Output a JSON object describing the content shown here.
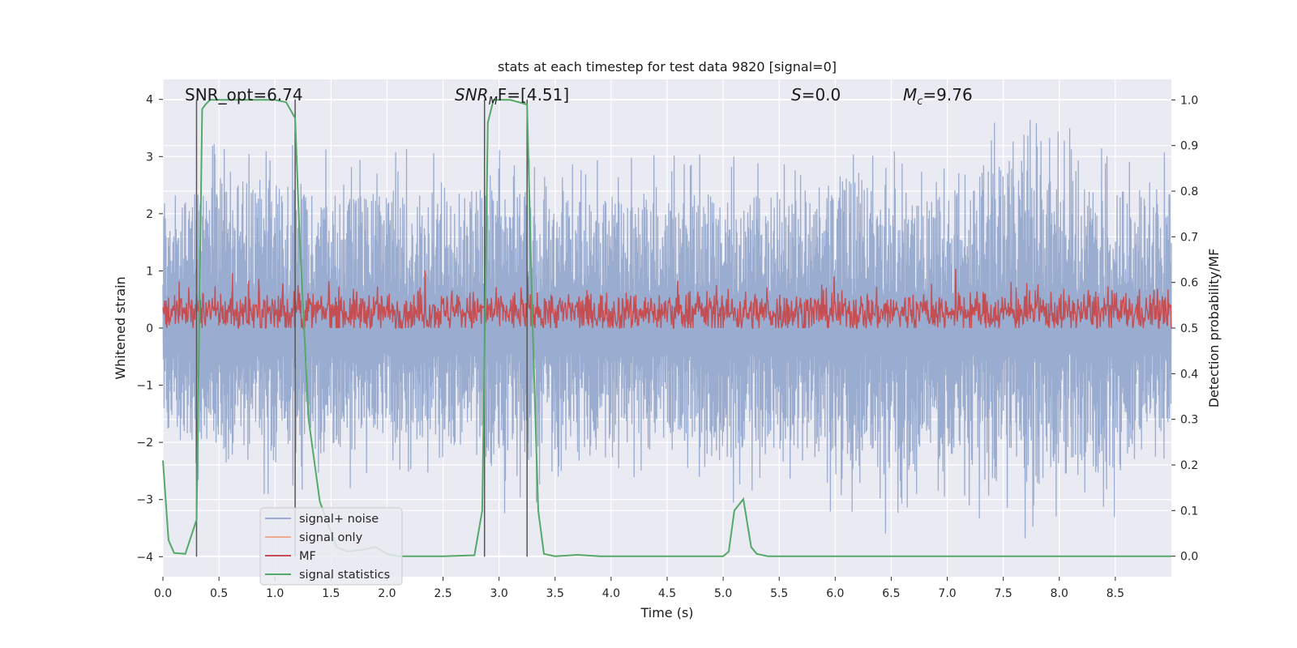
{
  "chart_data": {
    "type": "line",
    "title": "stats at each timestep for test data 9820 [signal=0]",
    "xlabel": "Time (s)",
    "ylabel": "Whitened strain",
    "ylabel_right": "Detection probability/MF",
    "xlim": [
      0,
      9.0
    ],
    "ylim": [
      -4.35,
      4.35
    ],
    "ylim_right": [
      -0.045,
      1.045
    ],
    "x_ticks": [
      0.0,
      0.5,
      1.0,
      1.5,
      2.0,
      2.5,
      3.0,
      3.5,
      4.0,
      4.5,
      5.0,
      5.5,
      6.0,
      6.5,
      7.0,
      7.5,
      8.0,
      8.5
    ],
    "x_tick_labels": [
      "0.0",
      "0.5",
      "1.0",
      "1.5",
      "2.0",
      "2.5",
      "3.0",
      "3.5",
      "4.0",
      "4.5",
      "5.0",
      "5.5",
      "6.0",
      "6.5",
      "7.0",
      "7.5",
      "8.0",
      "8.5"
    ],
    "y_ticks": [
      4,
      3,
      2,
      1,
      0,
      -1,
      -2,
      -3,
      -4
    ],
    "y_tick_labels": [
      "4",
      "3",
      "2",
      "1",
      "0",
      "−1",
      "−2",
      "−3",
      "−4"
    ],
    "y2_ticks": [
      1.0,
      0.9,
      0.8,
      0.7,
      0.6,
      0.5,
      0.4,
      0.3,
      0.2,
      0.1,
      0.0
    ],
    "y2_tick_labels": [
      "1.0",
      "0.9",
      "0.8",
      "0.7",
      "0.6",
      "0.5",
      "0.4",
      "0.3",
      "0.2",
      "0.1",
      "0.0"
    ],
    "grid": true,
    "annotations": {
      "snr_opt": "SNR_opt=6.74",
      "snr_mf_label": "SNR",
      "snr_mf_sub": "M",
      "snr_mf_rest": "F=[4.51]",
      "s_label": "S",
      "s_rest": "=0.0",
      "mc_label": "M",
      "mc_sub": "c",
      "mc_rest": "=9.76"
    },
    "vertical_markers": [
      0.3,
      1.18,
      2.87,
      3.25
    ],
    "series": [
      {
        "name": "signal+ noise",
        "color": "#9aaccf",
        "axis": "left",
        "description": "whitened noise trace, amplitude mostly within ±2.5, peaks near 4.0 and -3.9",
        "envelope_x": [
          0,
          0.5,
          1.0,
          1.5,
          2.0,
          2.5,
          3.0,
          3.5,
          4.0,
          4.5,
          5.0,
          5.5,
          6.0,
          6.5,
          7.0,
          7.5,
          8.0,
          8.5,
          9.0
        ],
        "envelope_upper": [
          2.6,
          3.4,
          3.5,
          3.1,
          3.2,
          3.2,
          3.3,
          2.9,
          3.3,
          3.0,
          3.2,
          3.0,
          3.6,
          3.1,
          3.1,
          4.0,
          3.6,
          3.1,
          3.5
        ],
        "envelope_lower": [
          -2.5,
          -3.0,
          -2.9,
          -3.0,
          -2.7,
          -2.6,
          -3.4,
          -2.9,
          -2.7,
          -2.6,
          -3.2,
          -2.6,
          -3.3,
          -3.7,
          -3.0,
          -3.7,
          -3.8,
          -3.3,
          -2.4
        ]
      },
      {
        "name": "signal only",
        "color": "#eeaa8e",
        "axis": "left",
        "x": [],
        "values": []
      },
      {
        "name": "MF",
        "color": "#c44e52",
        "axis": "right",
        "description": "matched-filter output, mostly 0.51–0.57 with spikes up to ~0.62",
        "baseline": 0.535,
        "band": [
          0.5,
          0.63
        ]
      },
      {
        "name": "signal statistics",
        "color": "#55a868",
        "axis": "right",
        "x": [
          0.0,
          0.05,
          0.1,
          0.2,
          0.3,
          0.35,
          0.38,
          0.42,
          0.5,
          0.8,
          1.0,
          1.1,
          1.18,
          1.22,
          1.3,
          1.4,
          1.55,
          1.65,
          1.8,
          1.9,
          2.0,
          2.1,
          2.5,
          2.78,
          2.85,
          2.9,
          2.95,
          3.0,
          3.1,
          3.25,
          3.3,
          3.35,
          3.4,
          3.5,
          3.7,
          3.9,
          4.5,
          5.0,
          5.05,
          5.1,
          5.18,
          5.25,
          5.3,
          5.4,
          6.0,
          7.0,
          8.0,
          9.0
        ],
        "values": [
          0.21,
          0.035,
          0.007,
          0.005,
          0.08,
          0.98,
          0.99,
          1.0,
          1.0,
          1.0,
          1.0,
          0.995,
          0.96,
          0.7,
          0.3,
          0.12,
          0.02,
          0.01,
          0.015,
          0.02,
          0.005,
          0.0,
          0.0,
          0.002,
          0.1,
          0.95,
          1.0,
          1.0,
          1.0,
          0.99,
          0.5,
          0.1,
          0.005,
          0.0,
          0.003,
          0.0,
          0.0,
          0.0,
          0.01,
          0.1,
          0.125,
          0.02,
          0.005,
          0.0,
          0.0,
          0.0,
          0.0,
          0.0
        ]
      }
    ],
    "legend": {
      "position": "lower-left",
      "entries": [
        {
          "label": "signal+ noise",
          "color": "#9aaccf"
        },
        {
          "label": "signal only",
          "color": "#eeaa8e"
        },
        {
          "label": "MF",
          "color": "#c44e52"
        },
        {
          "label": "signal statistics",
          "color": "#55a868"
        }
      ]
    },
    "colors": {
      "plot_background": "#eaeaf2",
      "grid": "#ffffff",
      "marker_line": "#555555"
    }
  }
}
